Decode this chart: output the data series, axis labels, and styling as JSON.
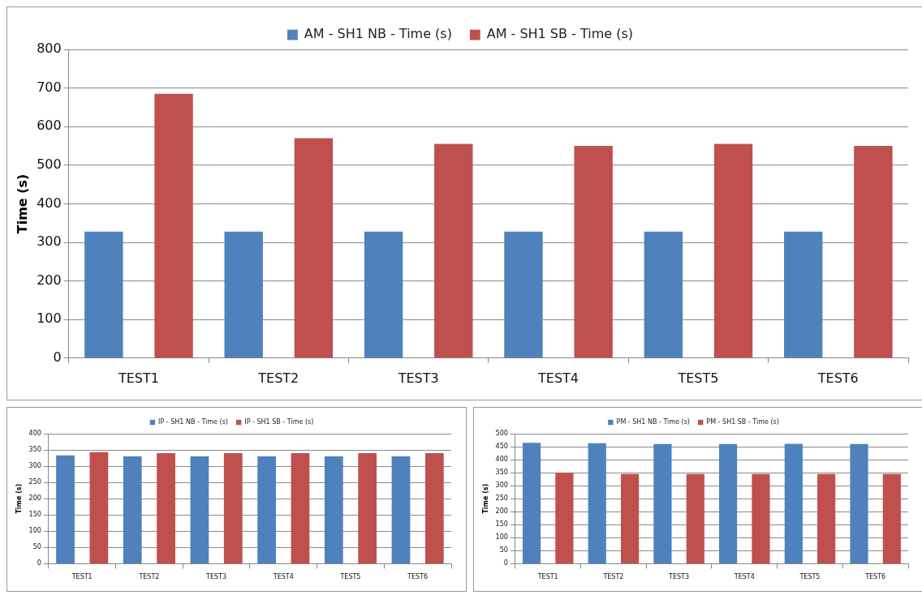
{
  "chart_data": [
    {
      "type": "bar",
      "ylabel": "Time (s)",
      "categories": [
        "TEST1",
        "TEST2",
        "TEST3",
        "TEST4",
        "TEST5",
        "TEST6"
      ],
      "series": [
        {
          "name": "AM - SH1 NB - Time (s)",
          "color": "#4f81bd",
          "values": [
            328,
            328,
            328,
            328,
            328,
            328
          ]
        },
        {
          "name": "AM - SH1 SB - Time (s)",
          "color": "#c0504d",
          "values": [
            685,
            570,
            555,
            550,
            555,
            550
          ]
        }
      ],
      "ylim": [
        0,
        800
      ],
      "yticks": [
        0,
        100,
        200,
        300,
        400,
        500,
        600,
        700,
        800
      ],
      "grid": "y",
      "legend": "top"
    },
    {
      "type": "bar",
      "ylabel": "Time (s)",
      "categories": [
        "TEST1",
        "TEST2",
        "TEST3",
        "TEST4",
        "TEST5",
        "TEST6"
      ],
      "series": [
        {
          "name": "IP - SH1 NB - Time (s)",
          "color": "#4f81bd",
          "values": [
            333,
            330,
            330,
            330,
            330,
            330
          ]
        },
        {
          "name": "IP - SH1 SB - Time (s)",
          "color": "#c0504d",
          "values": [
            343,
            340,
            340,
            340,
            340,
            340
          ]
        }
      ],
      "ylim": [
        0,
        400
      ],
      "yticks": [
        0,
        50,
        100,
        150,
        200,
        250,
        300,
        350,
        400
      ],
      "grid": "y",
      "legend": "top"
    },
    {
      "type": "bar",
      "ylabel": "Time (s)",
      "categories": [
        "TEST1",
        "TEST2",
        "TEST3",
        "TEST4",
        "TEST5",
        "TEST6"
      ],
      "series": [
        {
          "name": "PM - SH1 NB - Time (s)",
          "color": "#4f81bd",
          "values": [
            465,
            463,
            460,
            460,
            461,
            460
          ]
        },
        {
          "name": "PM - SH1 SB - Time (s)",
          "color": "#c0504d",
          "values": [
            350,
            345,
            345,
            345,
            345,
            345
          ]
        }
      ],
      "ylim": [
        0,
        500
      ],
      "yticks": [
        0,
        50,
        100,
        150,
        200,
        250,
        300,
        350,
        400,
        450,
        500
      ],
      "grid": "y",
      "legend": "top"
    }
  ]
}
